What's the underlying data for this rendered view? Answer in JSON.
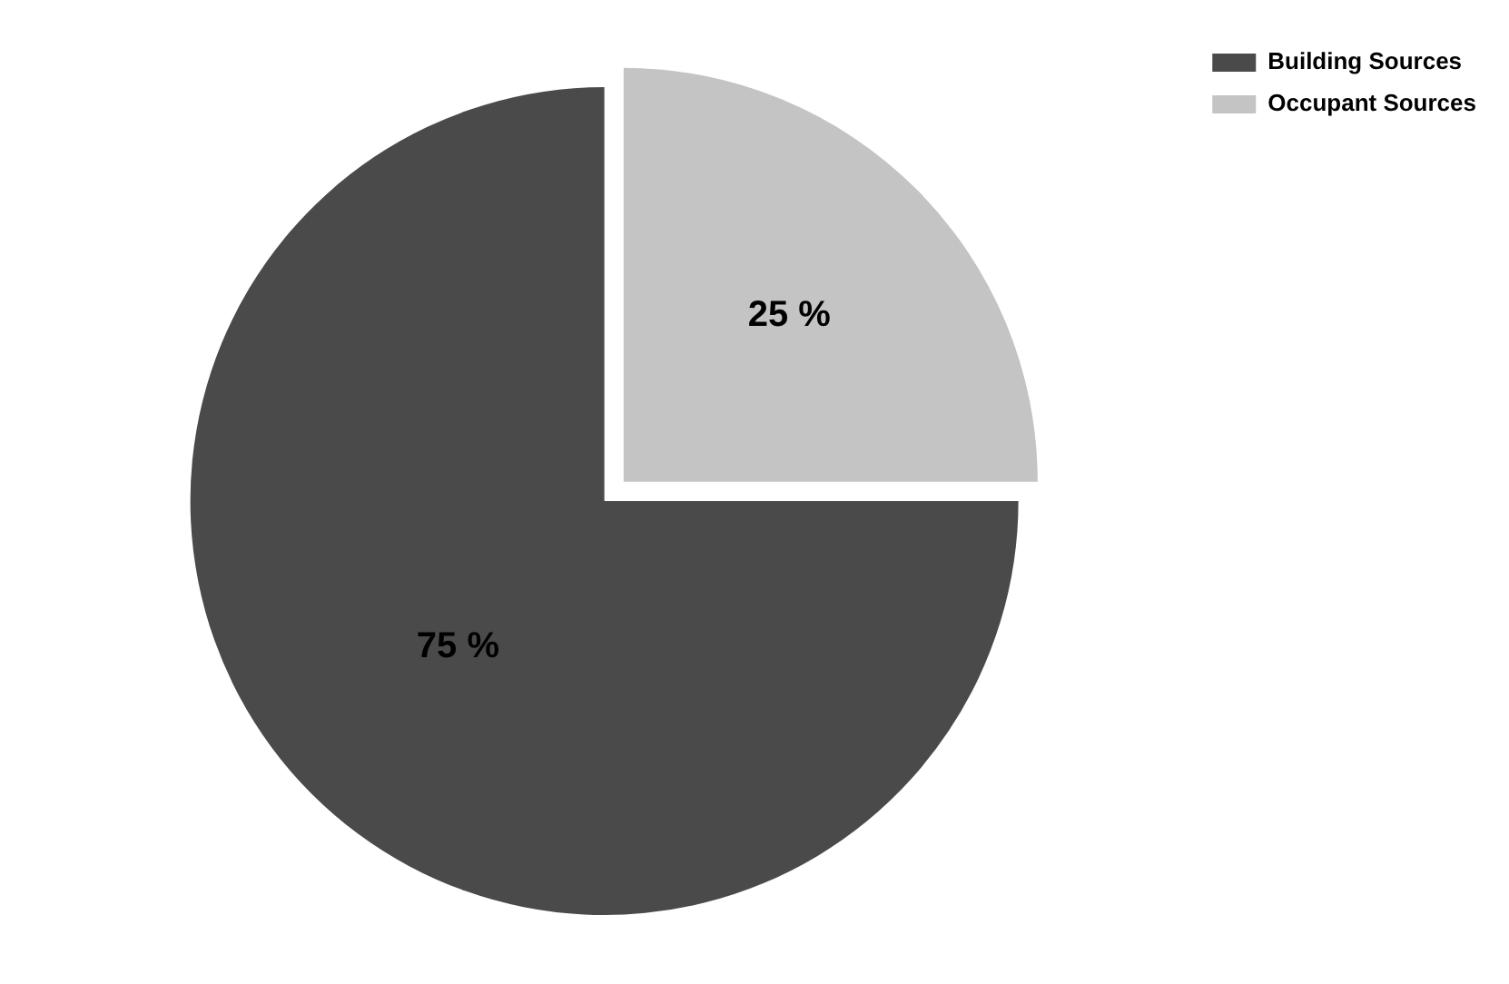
{
  "chart_data": {
    "type": "pie",
    "categories": [
      "Building Sources",
      "Occupant Sources"
    ],
    "values": [
      75,
      25
    ],
    "colors": [
      "#4a4a4a",
      "#c4c4c4"
    ],
    "value_labels": [
      "75 %",
      "25 %"
    ],
    "legend": "top right"
  }
}
